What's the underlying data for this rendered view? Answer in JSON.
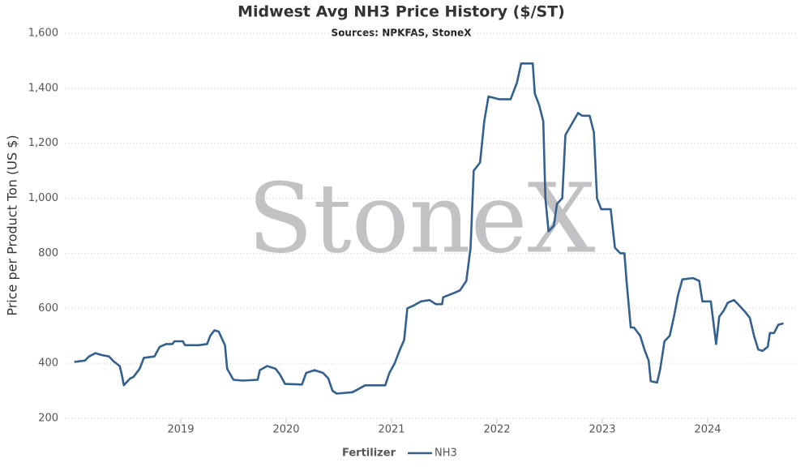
{
  "chart_data": {
    "type": "line",
    "title": "Midwest Avg NH3 Price History ($/ST)",
    "subtitle": "Sources: NPKFAS, StoneX",
    "watermark": "StoneX",
    "ylabel": "Price per Product Ton (US $)",
    "legend_title": "Fertilizer",
    "x": [
      2017.99,
      2018.09,
      2018.13,
      2018.19,
      2018.25,
      2018.32,
      2018.36,
      2018.42,
      2018.44,
      2018.46,
      2018.52,
      2018.55,
      2018.61,
      2018.65,
      2018.75,
      2018.8,
      2018.86,
      2018.92,
      2018.94,
      2019.02,
      2019.04,
      2019.17,
      2019.25,
      2019.28,
      2019.32,
      2019.36,
      2019.42,
      2019.44,
      2019.5,
      2019.59,
      2019.73,
      2019.75,
      2019.82,
      2019.9,
      2019.94,
      2019.99,
      2020.15,
      2020.19,
      2020.27,
      2020.35,
      2020.4,
      2020.44,
      2020.48,
      2020.63,
      2020.75,
      2020.94,
      2020.98,
      2021.03,
      2021.08,
      2021.12,
      2021.15,
      2021.21,
      2021.28,
      2021.36,
      2021.42,
      2021.48,
      2021.49,
      2021.59,
      2021.65,
      2021.71,
      2021.75,
      2021.78,
      2021.84,
      2021.88,
      2021.92,
      2022.02,
      2022.13,
      2022.19,
      2022.23,
      2022.34,
      2022.36,
      2022.4,
      2022.44,
      2022.46,
      2022.49,
      2022.54,
      2022.57,
      2022.62,
      2022.65,
      2022.71,
      2022.77,
      2022.81,
      2022.88,
      2022.92,
      2022.95,
      2022.99,
      2023.08,
      2023.12,
      2023.17,
      2023.21,
      2023.23,
      2023.27,
      2023.3,
      2023.36,
      2023.4,
      2023.44,
      2023.46,
      2023.52,
      2023.55,
      2023.59,
      2023.64,
      2023.68,
      2023.72,
      2023.76,
      2023.86,
      2023.92,
      2023.95,
      2024.03,
      2024.08,
      2024.11,
      2024.15,
      2024.19,
      2024.25,
      2024.3,
      2024.36,
      2024.4,
      2024.44,
      2024.48,
      2024.52,
      2024.57,
      2024.59,
      2024.63,
      2024.67,
      2024.72
    ],
    "series": [
      {
        "name": "NH3",
        "color": "#34608f",
        "values": [
          405,
          410,
          425,
          437,
          430,
          425,
          408,
          390,
          360,
          320,
          345,
          350,
          380,
          420,
          425,
          460,
          470,
          470,
          480,
          480,
          466,
          466,
          470,
          500,
          520,
          515,
          465,
          380,
          340,
          337,
          340,
          375,
          390,
          380,
          360,
          325,
          323,
          365,
          375,
          365,
          345,
          300,
          290,
          295,
          320,
          320,
          365,
          400,
          450,
          485,
          600,
          610,
          625,
          630,
          615,
          615,
          640,
          655,
          665,
          700,
          820,
          1100,
          1130,
          1280,
          1370,
          1360,
          1360,
          1420,
          1490,
          1490,
          1380,
          1340,
          1280,
          1000,
          880,
          900,
          980,
          1000,
          1230,
          1270,
          1310,
          1300,
          1300,
          1240,
          1000,
          960,
          960,
          820,
          800,
          800,
          700,
          530,
          530,
          500,
          450,
          410,
          335,
          330,
          380,
          480,
          500,
          570,
          650,
          705,
          710,
          700,
          625,
          625,
          470,
          570,
          590,
          620,
          630,
          610,
          585,
          565,
          500,
          450,
          445,
          460,
          510,
          510,
          540,
          545
        ]
      }
    ],
    "xlim": [
      2017.9,
      2024.85
    ],
    "xticks": [
      2019,
      2020,
      2021,
      2022,
      2023,
      2024
    ],
    "ylim": [
      200,
      1600
    ],
    "yticks": [
      200,
      400,
      600,
      800,
      {
        "value": 1000,
        "label": "1,000"
      },
      {
        "value": 1200,
        "label": "1,200"
      },
      {
        "value": 1400,
        "label": "1,400"
      },
      {
        "value": 1600,
        "label": "1,600"
      }
    ],
    "grid": true
  }
}
